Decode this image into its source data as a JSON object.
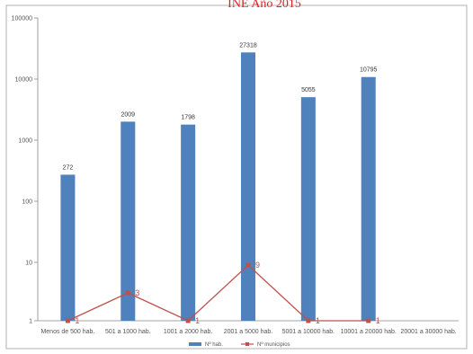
{
  "colors": {
    "bar": "#4f81bd",
    "line": "#c0504d",
    "title": "#e02020",
    "grid": "#d9d9d9",
    "axis": "#888888"
  },
  "chart_data": {
    "type": "bar",
    "title": "INE Año 2015",
    "yscale": "custom-log",
    "ylim": [
      1,
      100000
    ],
    "yticks": [
      {
        "label": "1"
      },
      {
        "label": "10"
      },
      {
        "label": "100"
      },
      {
        "label": "1000"
      },
      {
        "label": "10000"
      },
      {
        "label": "100000"
      }
    ],
    "categories": [
      "Menos de 500 hab.",
      "501 a 1000 hab.",
      "1001 a 2000 hab.",
      "2001 a 5000 hab.",
      "5001 a 10000 hab.",
      "10001 a 20000 hab.",
      "20001 a 30000 hab."
    ],
    "series": [
      {
        "name": "Nº hab.",
        "type": "bar",
        "values": [
          272,
          2009,
          1798,
          27318,
          5055,
          10795,
          null
        ],
        "labels": [
          "272",
          "2009",
          "1798",
          "27318",
          "5055",
          "10795",
          ""
        ]
      },
      {
        "name": "Nº municipios",
        "type": "line",
        "values": [
          1,
          3,
          1,
          9,
          1,
          1,
          null
        ],
        "labels": [
          "1",
          "3",
          "1",
          "9",
          "1",
          "1",
          ""
        ]
      }
    ],
    "legend": "bottom",
    "grid": false
  }
}
